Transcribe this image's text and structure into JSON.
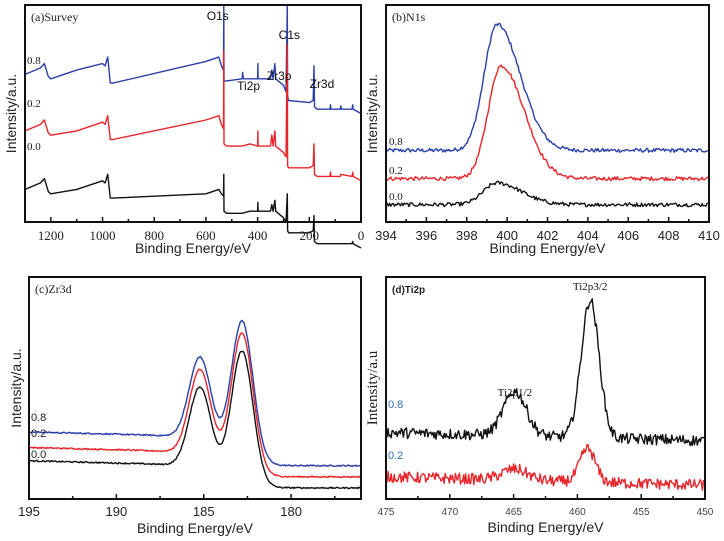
{
  "chart_data": [
    {
      "id": "a",
      "type": "line",
      "title": "(a)Survey",
      "xlabel": "Binding Energy/eV",
      "ylabel": "Intensity/a.u.",
      "xlim": [
        1300,
        0
      ],
      "x_reversed": true,
      "xticks": [
        1200,
        1000,
        800,
        600,
        400,
        200,
        0
      ],
      "xtick_labels": [
        "1200",
        "1000",
        "800",
        "600",
        "400",
        "200",
        "0"
      ],
      "yticks": [],
      "series": [
        {
          "name": "0.8",
          "color": "#2b3fa8",
          "offset": 0.68,
          "points": [
            [
              1300,
              0.0
            ],
            [
              1240,
              0.03
            ],
            [
              1225,
              0.05
            ],
            [
              1210,
              -0.01
            ],
            [
              1200,
              -0.02
            ],
            [
              1100,
              0.02
            ],
            [
              1000,
              0.05
            ],
            [
              990,
              0.04
            ],
            [
              980,
              0.08
            ],
            [
              970,
              -0.04
            ],
            [
              960,
              -0.04
            ],
            [
              600,
              0.06
            ],
            [
              550,
              0.08
            ],
            [
              540,
              0.04
            ],
            [
              532,
              0.02
            ],
            [
              531,
              1.2
            ],
            [
              530,
              -0.03
            ],
            [
              520,
              -0.03
            ],
            [
              460,
              -0.02
            ],
            [
              458,
              0.01
            ],
            [
              455,
              -0.02
            ],
            [
              430,
              -0.02
            ],
            [
              400,
              -0.02
            ],
            [
              399,
              0.05
            ],
            [
              398,
              -0.02
            ],
            [
              350,
              -0.02
            ],
            [
              345,
              0.02
            ],
            [
              340,
              -0.02
            ],
            [
              333,
              0.05
            ],
            [
              330,
              -0.02
            ],
            [
              300,
              -0.05
            ],
            [
              290,
              -0.08
            ],
            [
              285,
              0.32
            ],
            [
              284,
              -0.1
            ],
            [
              280,
              -0.12
            ],
            [
              200,
              -0.13
            ],
            [
              185,
              -0.12
            ],
            [
              182,
              0.04
            ],
            [
              180,
              -0.15
            ],
            [
              170,
              -0.16
            ],
            [
              120,
              -0.16
            ],
            [
              118,
              -0.14
            ],
            [
              116,
              -0.16
            ],
            [
              80,
              -0.16
            ],
            [
              78,
              -0.145
            ],
            [
              76,
              -0.16
            ],
            [
              35,
              -0.16
            ],
            [
              32,
              -0.14
            ],
            [
              30,
              -0.16
            ],
            [
              0,
              -0.18
            ]
          ]
        },
        {
          "name": "0.2",
          "color": "#e8252a",
          "offset": 0.42,
          "points": [
            [
              1300,
              0.0
            ],
            [
              1240,
              0.03
            ],
            [
              1225,
              0.05
            ],
            [
              1210,
              -0.01
            ],
            [
              1200,
              -0.02
            ],
            [
              1100,
              0.0
            ],
            [
              1000,
              0.04
            ],
            [
              990,
              0.03
            ],
            [
              980,
              0.07
            ],
            [
              970,
              -0.04
            ],
            [
              960,
              -0.04
            ],
            [
              600,
              0.05
            ],
            [
              550,
              0.07
            ],
            [
              540,
              0.03
            ],
            [
              532,
              0.01
            ],
            [
              531,
              0.37
            ],
            [
              530,
              -0.06
            ],
            [
              520,
              -0.07
            ],
            [
              460,
              -0.07
            ],
            [
              430,
              -0.06
            ],
            [
              400,
              -0.07
            ],
            [
              399,
              0.0
            ],
            [
              398,
              -0.07
            ],
            [
              350,
              -0.07
            ],
            [
              345,
              -0.02
            ],
            [
              340,
              -0.07
            ],
            [
              333,
              0.0
            ],
            [
              330,
              -0.07
            ],
            [
              300,
              -0.1
            ],
            [
              290,
              -0.12
            ],
            [
              285,
              0.4
            ],
            [
              284,
              -0.16
            ],
            [
              280,
              -0.17
            ],
            [
              200,
              -0.17
            ],
            [
              185,
              -0.16
            ],
            [
              182,
              -0.06
            ],
            [
              180,
              -0.2
            ],
            [
              170,
              -0.21
            ],
            [
              120,
              -0.21
            ],
            [
              118,
              -0.19
            ],
            [
              116,
              -0.21
            ],
            [
              80,
              -0.21
            ],
            [
              78,
              -0.2
            ],
            [
              35,
              -0.21
            ],
            [
              32,
              -0.19
            ],
            [
              30,
              -0.21
            ],
            [
              0,
              -0.23
            ]
          ]
        },
        {
          "name": "0.0",
          "color": "#111111",
          "offset": 0.15,
          "points": [
            [
              1300,
              0.0
            ],
            [
              1240,
              0.03
            ],
            [
              1225,
              0.05
            ],
            [
              1210,
              -0.01
            ],
            [
              1200,
              -0.02
            ],
            [
              1100,
              0.0
            ],
            [
              1000,
              0.04
            ],
            [
              990,
              0.03
            ],
            [
              980,
              0.07
            ],
            [
              970,
              -0.04
            ],
            [
              960,
              -0.04
            ],
            [
              600,
              -0.02
            ],
            [
              550,
              0.0
            ],
            [
              540,
              -0.02
            ],
            [
              532,
              -0.03
            ],
            [
              531,
              0.07
            ],
            [
              530,
              -0.1
            ],
            [
              520,
              -0.11
            ],
            [
              460,
              -0.11
            ],
            [
              430,
              -0.1
            ],
            [
              400,
              -0.1
            ],
            [
              399,
              -0.06
            ],
            [
              398,
              -0.1
            ],
            [
              350,
              -0.1
            ],
            [
              345,
              -0.07
            ],
            [
              340,
              -0.1
            ],
            [
              333,
              -0.05
            ],
            [
              330,
              -0.1
            ],
            [
              300,
              -0.13
            ],
            [
              290,
              -0.15
            ],
            [
              285,
              -0.02
            ],
            [
              284,
              -0.19
            ],
            [
              280,
              -0.2
            ],
            [
              200,
              -0.2
            ],
            [
              185,
              -0.19
            ],
            [
              182,
              -0.12
            ],
            [
              180,
              -0.24
            ],
            [
              170,
              -0.25
            ],
            [
              35,
              -0.25
            ],
            [
              32,
              -0.24
            ],
            [
              30,
              -0.25
            ],
            [
              0,
              -0.27
            ]
          ]
        }
      ],
      "annotations": [
        {
          "text": "O1s",
          "x": 531
        },
        {
          "text": "Ti2p",
          "x": 458
        },
        {
          "text": "Zr3p",
          "x": 340
        },
        {
          "text": "C1s",
          "x": 285
        },
        {
          "text": "Zr3d",
          "x": 182
        }
      ]
    },
    {
      "id": "b",
      "type": "line",
      "title": "(b)N1s",
      "xlabel": "Binding Energy/eV",
      "ylabel": "Intensity/a.u.",
      "xlim": [
        394,
        410
      ],
      "x_reversed": false,
      "xticks": [
        394,
        396,
        398,
        400,
        402,
        404,
        406,
        408,
        410
      ],
      "xtick_labels": [
        "394",
        "396",
        "398",
        "400",
        "402",
        "404",
        "406",
        "408",
        "410"
      ],
      "series": [
        {
          "name": "0.8",
          "color": "#2b3fa8",
          "baseline": 0.33,
          "peak_center": 399.5,
          "peak_height": 0.58,
          "width": 0.85
        },
        {
          "name": "0.2",
          "color": "#e8252a",
          "baseline": 0.2,
          "peak_center": 399.7,
          "peak_height": 0.52,
          "width": 0.85
        },
        {
          "name": "0.0",
          "color": "#111111",
          "baseline": 0.08,
          "peak_center": 399.5,
          "peak_height": 0.1,
          "width": 0.9
        }
      ]
    },
    {
      "id": "c",
      "type": "line",
      "title": "(c)Zr3d",
      "xlabel": "Binding Energy/eV",
      "ylabel": "Intensity/a.u.",
      "xlim": [
        195,
        176
      ],
      "x_reversed": true,
      "xticks": [
        195,
        190,
        185,
        180
      ],
      "xtick_labels": [
        "195",
        "190",
        "185",
        "180"
      ],
      "series": [
        {
          "name": "0.8",
          "color": "#2b3fa8",
          "baseline_left": 0.28,
          "baseline_right": 0.15,
          "peaks": [
            [
              185.2,
              0.38
            ],
            [
              182.8,
              0.63
            ]
          ]
        },
        {
          "name": "0.2",
          "color": "#e8252a",
          "baseline_left": 0.21,
          "baseline_right": 0.1,
          "peaks": [
            [
              185.2,
              0.39
            ],
            [
              182.8,
              0.63
            ]
          ]
        },
        {
          "name": "0.0",
          "color": "#111111",
          "baseline_left": 0.15,
          "baseline_right": 0.05,
          "peaks": [
            [
              185.2,
              0.37
            ],
            [
              182.8,
              0.6
            ]
          ]
        }
      ]
    },
    {
      "id": "d",
      "type": "line",
      "title": "(d)Ti2p",
      "xlabel": "Binding Energy/eV",
      "ylabel": "Intensity/a.u",
      "xlim": [
        475,
        450
      ],
      "x_reversed": true,
      "xticks": [
        475,
        470,
        465,
        460,
        455,
        450
      ],
      "xtick_labels": [
        "475",
        "470",
        "465",
        "460",
        "455",
        "450"
      ],
      "series": [
        {
          "name": "0.8",
          "color": "#111111",
          "baseline": 0.3,
          "noise": 0.025,
          "peaks": [
            [
              464.9,
              0.2,
              0.9
            ],
            [
              459.0,
              0.62,
              0.7
            ]
          ]
        },
        {
          "name": "0.2",
          "color": "#e8252a",
          "baseline": 0.1,
          "noise": 0.025,
          "peaks": [
            [
              464.9,
              0.05,
              1.0
            ],
            [
              459.2,
              0.15,
              0.6
            ]
          ]
        }
      ],
      "annotations": [
        {
          "text": "Ti2p1/2",
          "x": 464.9
        },
        {
          "text": "Ti2p3/2",
          "x": 459.0
        }
      ]
    }
  ]
}
